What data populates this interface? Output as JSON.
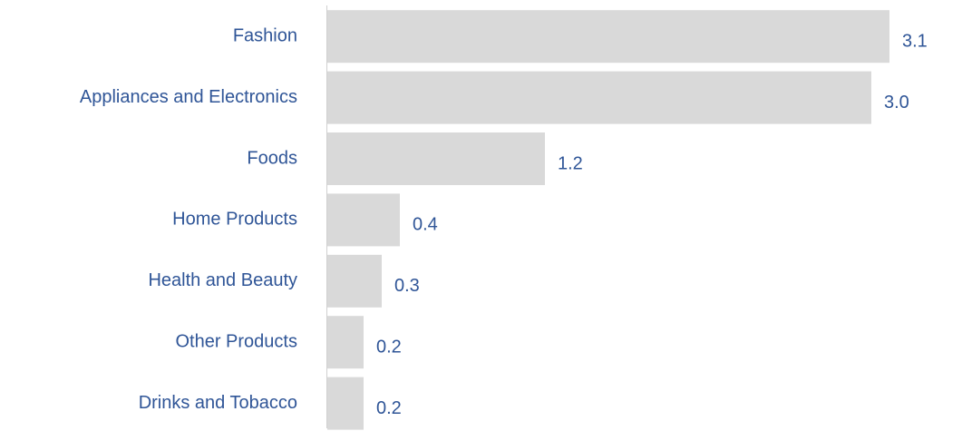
{
  "chart_data": {
    "type": "bar",
    "orientation": "horizontal",
    "categories": [
      "Fashion",
      "Appliances and Electronics",
      "Foods",
      "Home Products",
      "Health and Beauty",
      "Other Products",
      "Drinks and Tobacco"
    ],
    "values": [
      3.1,
      3.0,
      1.2,
      0.4,
      0.3,
      0.2,
      0.2
    ],
    "value_labels": [
      "3.1",
      "3.0",
      "1.2",
      "0.4",
      "0.3",
      "0.2",
      "0.2"
    ],
    "color": "#d9d9d9"
  }
}
